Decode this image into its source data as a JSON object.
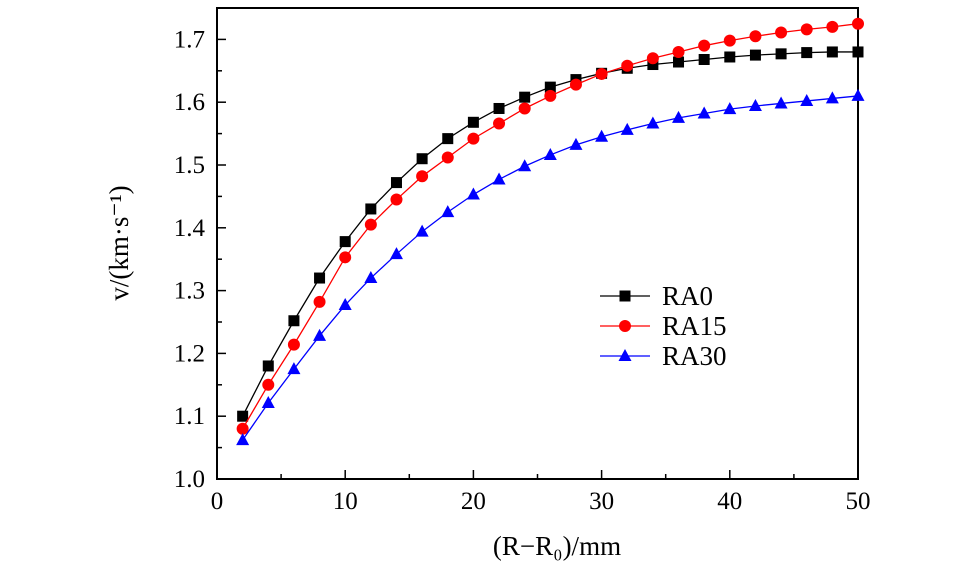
{
  "chart_data": {
    "type": "line",
    "title": "",
    "xlabel": "(R−R₀)/mm",
    "ylabel": "v/(km·s⁻¹)",
    "xlim": [
      0,
      50
    ],
    "ylim": [
      1.0,
      1.75
    ],
    "xticks": [
      "0",
      "10",
      "20",
      "30",
      "40",
      "50"
    ],
    "yticks": [
      "1.0",
      "1.1",
      "1.2",
      "1.3",
      "1.4",
      "1.5",
      "1.6",
      "1.7"
    ],
    "grid": false,
    "legend_position": "center-right",
    "x": [
      2,
      4,
      6,
      8,
      10,
      12,
      14,
      16,
      18,
      20,
      22,
      24,
      26,
      28,
      30,
      32,
      34,
      36,
      38,
      40,
      42,
      44,
      46,
      48,
      50
    ],
    "series": [
      {
        "name": "RA0",
        "color": "#000000",
        "marker": "square",
        "values": [
          1.1,
          1.18,
          1.252,
          1.32,
          1.378,
          1.43,
          1.472,
          1.51,
          1.542,
          1.568,
          1.59,
          1.608,
          1.624,
          1.636,
          1.646,
          1.654,
          1.66,
          1.664,
          1.668,
          1.672,
          1.675,
          1.677,
          1.679,
          1.68,
          1.68
        ]
      },
      {
        "name": "RA15",
        "color": "#ff0000",
        "marker": "circle",
        "values": [
          1.08,
          1.15,
          1.214,
          1.282,
          1.353,
          1.405,
          1.445,
          1.482,
          1.512,
          1.542,
          1.566,
          1.59,
          1.61,
          1.628,
          1.645,
          1.658,
          1.67,
          1.68,
          1.69,
          1.698,
          1.705,
          1.711,
          1.716,
          1.72,
          1.725
        ]
      },
      {
        "name": "RA30",
        "color": "#0000ff",
        "marker": "triangle",
        "values": [
          1.062,
          1.121,
          1.175,
          1.228,
          1.277,
          1.32,
          1.358,
          1.394,
          1.425,
          1.453,
          1.477,
          1.498,
          1.516,
          1.532,
          1.545,
          1.556,
          1.566,
          1.575,
          1.582,
          1.589,
          1.594,
          1.598,
          1.602,
          1.606,
          1.61
        ]
      }
    ]
  }
}
